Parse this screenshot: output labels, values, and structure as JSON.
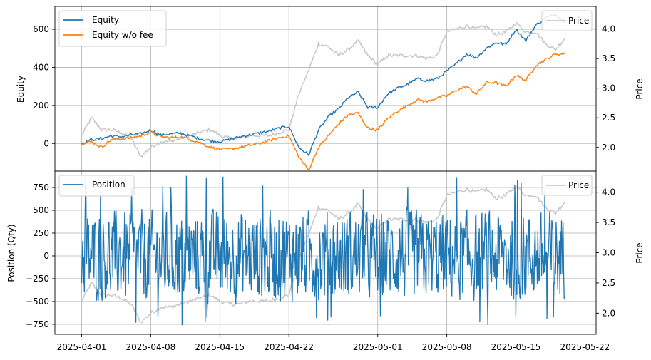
{
  "chart_data": [
    {
      "type": "line",
      "ylabel": "Equity",
      "ylabel_right": "Price",
      "ylim": [
        -145,
        720
      ],
      "ylim_right": [
        1.6,
        4.38
      ],
      "yticks": [
        0,
        200,
        400,
        600
      ],
      "yticks_right": [
        2.0,
        2.5,
        3.0,
        3.5,
        4.0
      ],
      "ytick_labels": [
        "0",
        "200",
        "400",
        "600"
      ],
      "ytick_labels_right": [
        "2.0",
        "2.5",
        "3.0",
        "3.5",
        "4.0"
      ],
      "x_range": [
        "2025-03-29T07:00",
        "2025-05-23T03:00"
      ],
      "grid": true,
      "legend": {
        "placement": "upper-left",
        "entries": [
          "Equity",
          "Equity w/o fee"
        ]
      },
      "legend_right": {
        "placement": "upper-right",
        "entries": [
          "Price"
        ]
      },
      "series": [
        {
          "name": "Equity",
          "color": "#1f77b4",
          "axis": "left",
          "x": [
            "2025-04-01",
            "2025-04-02",
            "2025-04-03",
            "2025-04-04",
            "2025-04-05",
            "2025-04-06",
            "2025-04-07",
            "2025-04-08",
            "2025-04-09",
            "2025-04-10",
            "2025-04-11",
            "2025-04-12",
            "2025-04-13",
            "2025-04-14",
            "2025-04-15",
            "2025-04-16",
            "2025-04-17",
            "2025-04-18",
            "2025-04-19",
            "2025-04-20",
            "2025-04-21",
            "2025-04-22",
            "2025-04-23",
            "2025-04-24",
            "2025-04-25",
            "2025-04-26",
            "2025-04-27",
            "2025-04-28",
            "2025-04-29",
            "2025-04-30",
            "2025-05-01",
            "2025-05-02",
            "2025-05-03",
            "2025-05-04",
            "2025-05-05",
            "2025-05-06",
            "2025-05-07",
            "2025-05-08",
            "2025-05-09",
            "2025-05-10",
            "2025-05-11",
            "2025-05-12",
            "2025-05-13",
            "2025-05-14",
            "2025-05-15",
            "2025-05-16",
            "2025-05-17",
            "2025-05-18",
            "2025-05-19",
            "2025-05-20"
          ],
          "values": [
            0,
            20,
            25,
            40,
            35,
            45,
            50,
            70,
            45,
            50,
            55,
            40,
            25,
            15,
            10,
            20,
            35,
            45,
            55,
            65,
            80,
            90,
            -20,
            -60,
            70,
            140,
            180,
            240,
            270,
            190,
            190,
            260,
            290,
            310,
            340,
            330,
            340,
            380,
            420,
            470,
            450,
            500,
            530,
            520,
            600,
            540,
            620,
            660,
            680,
            640
          ]
        },
        {
          "name": "Equity w/o fee",
          "color": "#ff7f0e",
          "axis": "left",
          "x": [
            "2025-04-01",
            "2025-04-02",
            "2025-04-03",
            "2025-04-04",
            "2025-04-05",
            "2025-04-06",
            "2025-04-07",
            "2025-04-08",
            "2025-04-09",
            "2025-04-10",
            "2025-04-11",
            "2025-04-12",
            "2025-04-13",
            "2025-04-14",
            "2025-04-15",
            "2025-04-16",
            "2025-04-17",
            "2025-04-18",
            "2025-04-19",
            "2025-04-20",
            "2025-04-21",
            "2025-04-22",
            "2025-04-23",
            "2025-04-24",
            "2025-04-25",
            "2025-04-26",
            "2025-04-27",
            "2025-04-28",
            "2025-04-29",
            "2025-04-30",
            "2025-05-01",
            "2025-05-02",
            "2025-05-03",
            "2025-05-04",
            "2025-05-05",
            "2025-05-06",
            "2025-05-07",
            "2025-05-08",
            "2025-05-09",
            "2025-05-10",
            "2025-05-11",
            "2025-05-12",
            "2025-05-13",
            "2025-05-14",
            "2025-05-15",
            "2025-05-16",
            "2025-05-17",
            "2025-05-18",
            "2025-05-19",
            "2025-05-20"
          ],
          "values": [
            0,
            10,
            -20,
            20,
            25,
            30,
            40,
            60,
            35,
            30,
            35,
            20,
            5,
            -20,
            -30,
            -30,
            -20,
            -10,
            0,
            15,
            30,
            40,
            -70,
            -140,
            -20,
            40,
            100,
            150,
            160,
            80,
            70,
            130,
            170,
            200,
            230,
            220,
            240,
            250,
            280,
            300,
            260,
            320,
            320,
            300,
            360,
            330,
            410,
            440,
            470,
            470
          ]
        },
        {
          "name": "Price",
          "color": "#c8c8c8",
          "axis": "right",
          "x": [
            "2025-04-01",
            "2025-04-02",
            "2025-04-03",
            "2025-04-04",
            "2025-04-05",
            "2025-04-06",
            "2025-04-07",
            "2025-04-08",
            "2025-04-09",
            "2025-04-10",
            "2025-04-11",
            "2025-04-12",
            "2025-04-13",
            "2025-04-14",
            "2025-04-15",
            "2025-04-16",
            "2025-04-17",
            "2025-04-18",
            "2025-04-19",
            "2025-04-20",
            "2025-04-21",
            "2025-04-22",
            "2025-04-23",
            "2025-04-24",
            "2025-04-25",
            "2025-04-26",
            "2025-04-27",
            "2025-04-28",
            "2025-04-29",
            "2025-04-30",
            "2025-05-01",
            "2025-05-02",
            "2025-05-03",
            "2025-05-04",
            "2025-05-05",
            "2025-05-06",
            "2025-05-07",
            "2025-05-08",
            "2025-05-09",
            "2025-05-10",
            "2025-05-11",
            "2025-05-12",
            "2025-05-13",
            "2025-05-14",
            "2025-05-15",
            "2025-05-16",
            "2025-05-17",
            "2025-05-18",
            "2025-05-19",
            "2025-05-20"
          ],
          "values": [
            2.2,
            2.5,
            2.3,
            2.3,
            2.25,
            2.15,
            1.85,
            2.0,
            2.1,
            2.1,
            2.15,
            2.2,
            2.25,
            2.3,
            2.2,
            2.15,
            2.15,
            2.2,
            2.2,
            2.2,
            2.25,
            2.3,
            2.9,
            3.3,
            3.75,
            3.7,
            3.55,
            3.65,
            3.8,
            3.55,
            3.4,
            3.55,
            3.55,
            3.55,
            3.55,
            3.5,
            3.55,
            3.95,
            4.0,
            4.05,
            4.0,
            4.05,
            3.9,
            3.95,
            4.1,
            3.95,
            3.95,
            3.75,
            3.65,
            3.85
          ]
        }
      ]
    },
    {
      "type": "line",
      "ylabel": "Position (Qty)",
      "ylabel_right": "Price",
      "xlabel": "",
      "ylim": [
        -860,
        930
      ],
      "ylim_right": [
        1.65,
        4.35
      ],
      "yticks": [
        -750,
        -500,
        -250,
        0,
        250,
        500,
        750
      ],
      "yticks_right": [
        2.0,
        2.5,
        3.0,
        3.5,
        4.0
      ],
      "ytick_labels": [
        "−750",
        "−500",
        "−250",
        "0",
        "250",
        "500",
        "750"
      ],
      "ytick_labels_right": [
        "2.0",
        "2.5",
        "3.0",
        "3.5",
        "4.0"
      ],
      "x_range": [
        "2025-03-29T07:00",
        "2025-05-23T03:00"
      ],
      "xticks": [
        "2025-04-01",
        "2025-04-08",
        "2025-04-15",
        "2025-04-22",
        "2025-05-01",
        "2025-05-08",
        "2025-05-15",
        "2025-05-22"
      ],
      "xtick_labels": [
        "2025-04-01",
        "2025-04-08",
        "2025-04-15",
        "2025-04-22",
        "2025-05-01",
        "2025-05-08",
        "2025-05-15",
        "2025-05-22"
      ],
      "grid": true,
      "legend": {
        "placement": "upper-left",
        "entries": [
          "Position"
        ]
      },
      "legend_right": {
        "placement": "upper-right",
        "entries": [
          "Price"
        ]
      },
      "series": [
        {
          "name": "Position",
          "color": "#1f77b4",
          "axis": "left",
          "x_start": "2025-04-01",
          "x_end": "2025-05-20",
          "value_range": [
            -780,
            880
          ],
          "typical_range": [
            -550,
            550
          ]
        },
        {
          "name": "Price",
          "color": "#c8c8c8",
          "axis": "right",
          "same_as_top_panel": true
        }
      ]
    }
  ]
}
